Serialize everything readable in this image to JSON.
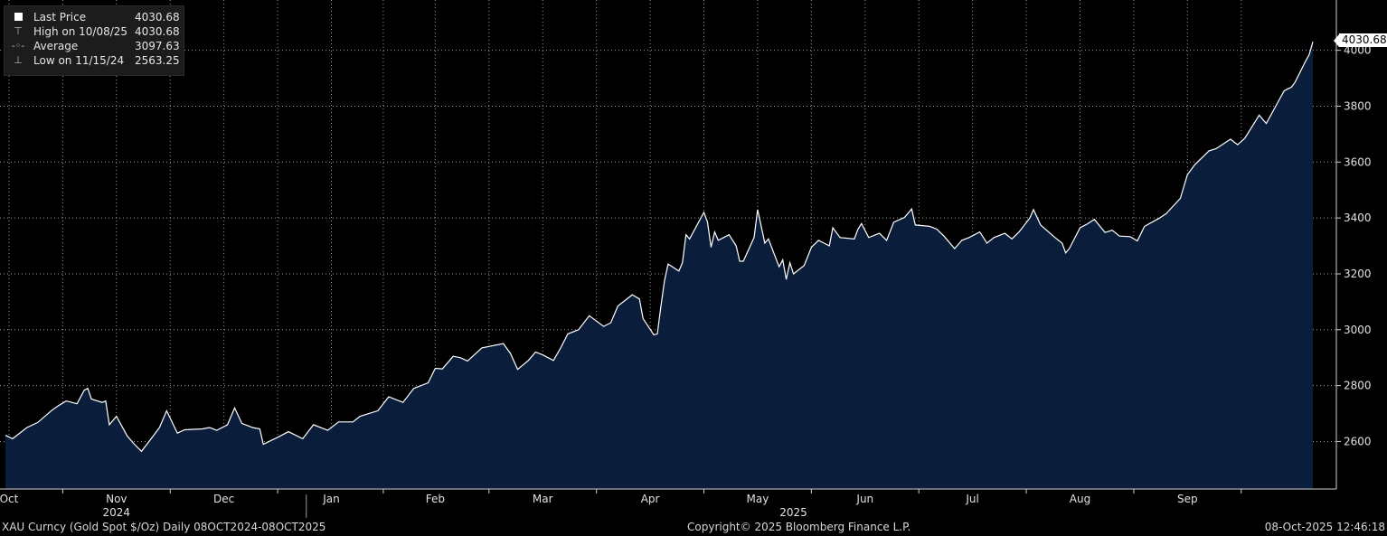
{
  "chart_data": {
    "type": "area",
    "title": "",
    "xlabel": "",
    "ylabel": "",
    "ylim": [
      2430,
      4180
    ],
    "yticks": [
      2600,
      2800,
      3000,
      3200,
      3400,
      3600,
      3800,
      4000
    ],
    "x_range": [
      "2024-10-08",
      "2025-10-08"
    ],
    "x_tick_labels": [
      "Oct",
      "Nov",
      "Dec",
      "Jan",
      "Feb",
      "Mar",
      "Apr",
      "May",
      "Jun",
      "Jul",
      "Aug",
      "Sep"
    ],
    "x_tick_dates": [
      "2024-10-09",
      "2024-11-08",
      "2024-12-08",
      "2025-01-07",
      "2025-02-05",
      "2025-03-07",
      "2025-04-06",
      "2025-05-06",
      "2025-06-05",
      "2025-07-05",
      "2025-08-04",
      "2025-09-03"
    ],
    "year_labels": [
      {
        "label": "2024",
        "date": "2024-11-08"
      },
      {
        "label": "2025",
        "date": "2025-05-16"
      }
    ],
    "year_separator_date": "2024-12-31",
    "grid": true,
    "legend_position": "top-left",
    "colors": {
      "line": "#ffffff",
      "fill": "#0a1e3c",
      "background": "#000000",
      "grid": "#9a9a9a"
    },
    "series": [
      {
        "name": "Last Price",
        "points": [
          [
            "2024-10-08",
            2622
          ],
          [
            "2024-10-10",
            2610
          ],
          [
            "2024-10-14",
            2650
          ],
          [
            "2024-10-17",
            2668
          ],
          [
            "2024-10-21",
            2712
          ],
          [
            "2024-10-23",
            2730
          ],
          [
            "2024-10-25",
            2745
          ],
          [
            "2024-10-28",
            2735
          ],
          [
            "2024-10-30",
            2784
          ],
          [
            "2024-10-31",
            2790
          ],
          [
            "2024-11-01",
            2752
          ],
          [
            "2024-11-04",
            2740
          ],
          [
            "2024-11-05",
            2745
          ],
          [
            "2024-11-06",
            2660
          ],
          [
            "2024-11-08",
            2690
          ],
          [
            "2024-11-11",
            2620
          ],
          [
            "2024-11-13",
            2590
          ],
          [
            "2024-11-15",
            2565
          ],
          [
            "2024-11-18",
            2615
          ],
          [
            "2024-11-20",
            2650
          ],
          [
            "2024-11-22",
            2710
          ],
          [
            "2024-11-25",
            2630
          ],
          [
            "2024-11-27",
            2642
          ],
          [
            "2024-12-02",
            2645
          ],
          [
            "2024-12-04",
            2650
          ],
          [
            "2024-12-06",
            2640
          ],
          [
            "2024-12-09",
            2660
          ],
          [
            "2024-12-11",
            2720
          ],
          [
            "2024-12-13",
            2665
          ],
          [
            "2024-12-16",
            2650
          ],
          [
            "2024-12-18",
            2645
          ],
          [
            "2024-12-19",
            2590
          ],
          [
            "2024-12-23",
            2615
          ],
          [
            "2024-12-26",
            2635
          ],
          [
            "2024-12-30",
            2610
          ],
          [
            "2025-01-02",
            2660
          ],
          [
            "2025-01-06",
            2640
          ],
          [
            "2025-01-09",
            2670
          ],
          [
            "2025-01-13",
            2670
          ],
          [
            "2025-01-15",
            2690
          ],
          [
            "2025-01-20",
            2710
          ],
          [
            "2025-01-23",
            2760
          ],
          [
            "2025-01-27",
            2740
          ],
          [
            "2025-01-30",
            2790
          ],
          [
            "2025-02-03",
            2810
          ],
          [
            "2025-02-05",
            2862
          ],
          [
            "2025-02-07",
            2860
          ],
          [
            "2025-02-10",
            2905
          ],
          [
            "2025-02-12",
            2900
          ],
          [
            "2025-02-14",
            2888
          ],
          [
            "2025-02-18",
            2935
          ],
          [
            "2025-02-20",
            2940
          ],
          [
            "2025-02-24",
            2950
          ],
          [
            "2025-02-26",
            2915
          ],
          [
            "2025-02-28",
            2858
          ],
          [
            "2025-03-03",
            2890
          ],
          [
            "2025-03-05",
            2920
          ],
          [
            "2025-03-07",
            2910
          ],
          [
            "2025-03-10",
            2890
          ],
          [
            "2025-03-12",
            2935
          ],
          [
            "2025-03-14",
            2985
          ],
          [
            "2025-03-17",
            3000
          ],
          [
            "2025-03-20",
            3050
          ],
          [
            "2025-03-24",
            3012
          ],
          [
            "2025-03-26",
            3025
          ],
          [
            "2025-03-28",
            3085
          ],
          [
            "2025-04-01",
            3125
          ],
          [
            "2025-04-03",
            3110
          ],
          [
            "2025-04-04",
            3040
          ],
          [
            "2025-04-07",
            2982
          ],
          [
            "2025-04-08",
            2985
          ],
          [
            "2025-04-09",
            3085
          ],
          [
            "2025-04-10",
            3175
          ],
          [
            "2025-04-11",
            3235
          ],
          [
            "2025-04-14",
            3210
          ],
          [
            "2025-04-15",
            3240
          ],
          [
            "2025-04-16",
            3340
          ],
          [
            "2025-04-17",
            3325
          ],
          [
            "2025-04-21",
            3420
          ],
          [
            "2025-04-22",
            3385
          ],
          [
            "2025-04-23",
            3295
          ],
          [
            "2025-04-24",
            3350
          ],
          [
            "2025-04-25",
            3320
          ],
          [
            "2025-04-28",
            3340
          ],
          [
            "2025-04-30",
            3300
          ],
          [
            "2025-05-01",
            3245
          ],
          [
            "2025-05-02",
            3245
          ],
          [
            "2025-05-05",
            3330
          ],
          [
            "2025-05-06",
            3430
          ],
          [
            "2025-05-08",
            3310
          ],
          [
            "2025-05-09",
            3325
          ],
          [
            "2025-05-12",
            3225
          ],
          [
            "2025-05-13",
            3250
          ],
          [
            "2025-05-14",
            3180
          ],
          [
            "2025-05-15",
            3240
          ],
          [
            "2025-05-16",
            3200
          ],
          [
            "2025-05-19",
            3230
          ],
          [
            "2025-05-21",
            3295
          ],
          [
            "2025-05-23",
            3320
          ],
          [
            "2025-05-26",
            3300
          ],
          [
            "2025-05-27",
            3365
          ],
          [
            "2025-05-29",
            3330
          ],
          [
            "2025-06-02",
            3325
          ],
          [
            "2025-06-03",
            3360
          ],
          [
            "2025-06-04",
            3380
          ],
          [
            "2025-06-06",
            3330
          ],
          [
            "2025-06-09",
            3345
          ],
          [
            "2025-06-11",
            3320
          ],
          [
            "2025-06-13",
            3385
          ],
          [
            "2025-06-16",
            3402
          ],
          [
            "2025-06-18",
            3432
          ],
          [
            "2025-06-19",
            3375
          ],
          [
            "2025-06-23",
            3370
          ],
          [
            "2025-06-25",
            3360
          ],
          [
            "2025-06-27",
            3335
          ],
          [
            "2025-06-30",
            3290
          ],
          [
            "2025-07-02",
            3320
          ],
          [
            "2025-07-04",
            3330
          ],
          [
            "2025-07-07",
            3350
          ],
          [
            "2025-07-09",
            3310
          ],
          [
            "2025-07-11",
            3330
          ],
          [
            "2025-07-14",
            3345
          ],
          [
            "2025-07-16",
            3325
          ],
          [
            "2025-07-18",
            3350
          ],
          [
            "2025-07-21",
            3400
          ],
          [
            "2025-07-22",
            3430
          ],
          [
            "2025-07-24",
            3375
          ],
          [
            "2025-07-28",
            3330
          ],
          [
            "2025-07-30",
            3310
          ],
          [
            "2025-07-31",
            3275
          ],
          [
            "2025-08-01",
            3290
          ],
          [
            "2025-08-04",
            3365
          ],
          [
            "2025-08-06",
            3378
          ],
          [
            "2025-08-08",
            3395
          ],
          [
            "2025-08-11",
            3348
          ],
          [
            "2025-08-13",
            3356
          ],
          [
            "2025-08-15",
            3335
          ],
          [
            "2025-08-18",
            3333
          ],
          [
            "2025-08-20",
            3318
          ],
          [
            "2025-08-22",
            3370
          ],
          [
            "2025-08-26",
            3398
          ],
          [
            "2025-08-28",
            3415
          ],
          [
            "2025-09-01",
            3470
          ],
          [
            "2025-09-03",
            3555
          ],
          [
            "2025-09-05",
            3590
          ],
          [
            "2025-09-09",
            3640
          ],
          [
            "2025-09-11",
            3648
          ],
          [
            "2025-09-15",
            3682
          ],
          [
            "2025-09-17",
            3662
          ],
          [
            "2025-09-19",
            3685
          ],
          [
            "2025-09-22",
            3747
          ],
          [
            "2025-09-23",
            3768
          ],
          [
            "2025-09-25",
            3738
          ],
          [
            "2025-09-29",
            3832
          ],
          [
            "2025-09-30",
            3855
          ],
          [
            "2025-10-01",
            3862
          ],
          [
            "2025-10-02",
            3868
          ],
          [
            "2025-10-03",
            3885
          ],
          [
            "2025-10-06",
            3962
          ],
          [
            "2025-10-07",
            3985
          ],
          [
            "2025-10-08",
            4030.68
          ]
        ]
      }
    ]
  },
  "legend": {
    "rows": [
      {
        "icon": "square-swatch-icon",
        "label": "Last Price",
        "value": "4030.68"
      },
      {
        "icon": "high-marker-icon",
        "label": "High on 10/08/25",
        "value": "4030.68"
      },
      {
        "icon": "average-line-icon",
        "label": "Average",
        "value": "3097.63"
      },
      {
        "icon": "low-marker-icon",
        "label": "Low on 11/15/24",
        "value": "2563.25"
      }
    ]
  },
  "last_value_label": "4030.68",
  "footer": {
    "left": "XAU Curncy (Gold Spot  $/Oz) Daily 08OCT2024-08OCT2025",
    "center": "Copyright© 2025 Bloomberg Finance L.P.",
    "right": "08-Oct-2025 12:46:18"
  }
}
